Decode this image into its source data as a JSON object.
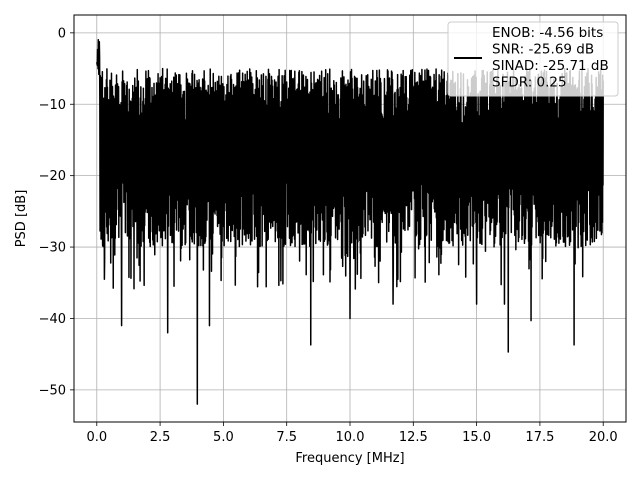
{
  "chart_data": {
    "type": "line",
    "title": "",
    "xlabel": "Frequency [MHz]",
    "ylabel": "PSD [dB]",
    "xlim": [
      -0.9,
      20.9
    ],
    "ylim": [
      -54.5,
      2.5
    ],
    "xticks": [
      0.0,
      2.5,
      5.0,
      7.5,
      10.0,
      12.5,
      15.0,
      17.5,
      20.0
    ],
    "xtick_labels": [
      "0.0",
      "2.5",
      "5.0",
      "7.5",
      "10.0",
      "12.5",
      "15.0",
      "17.5",
      "20.0"
    ],
    "yticks": [
      0,
      -10,
      -20,
      -30,
      -40,
      -50
    ],
    "ytick_labels": [
      "0",
      "−10",
      "−20",
      "−30",
      "−40",
      "−50"
    ],
    "grid": true,
    "legend_position": "top-right",
    "legend": {
      "lines": [
        "ENOB: -4.56 bits",
        "SNR: -25.69 dB",
        "SINAD: -25.71 dB",
        "SFDR: 0.25"
      ]
    },
    "series": [
      {
        "color": "#000000",
        "x_range": [
          0.0,
          20.0
        ],
        "band_upper_dB": -9,
        "band_lower_dB": -25,
        "peak_max_dB": -0.3,
        "dips": [
          {
            "x": 0.3,
            "y": -34.5
          },
          {
            "x": 0.98,
            "y": -41
          },
          {
            "x": 2.8,
            "y": -42
          },
          {
            "x": 3.97,
            "y": -52
          },
          {
            "x": 4.45,
            "y": -41
          },
          {
            "x": 8.45,
            "y": -43.7
          },
          {
            "x": 10.0,
            "y": -40
          },
          {
            "x": 11.7,
            "y": -38
          },
          {
            "x": 15.0,
            "y": -38
          },
          {
            "x": 16.1,
            "y": -38
          },
          {
            "x": 16.25,
            "y": -44.7
          },
          {
            "x": 17.15,
            "y": -40.3
          },
          {
            "x": 18.85,
            "y": -43.7
          }
        ]
      }
    ]
  }
}
